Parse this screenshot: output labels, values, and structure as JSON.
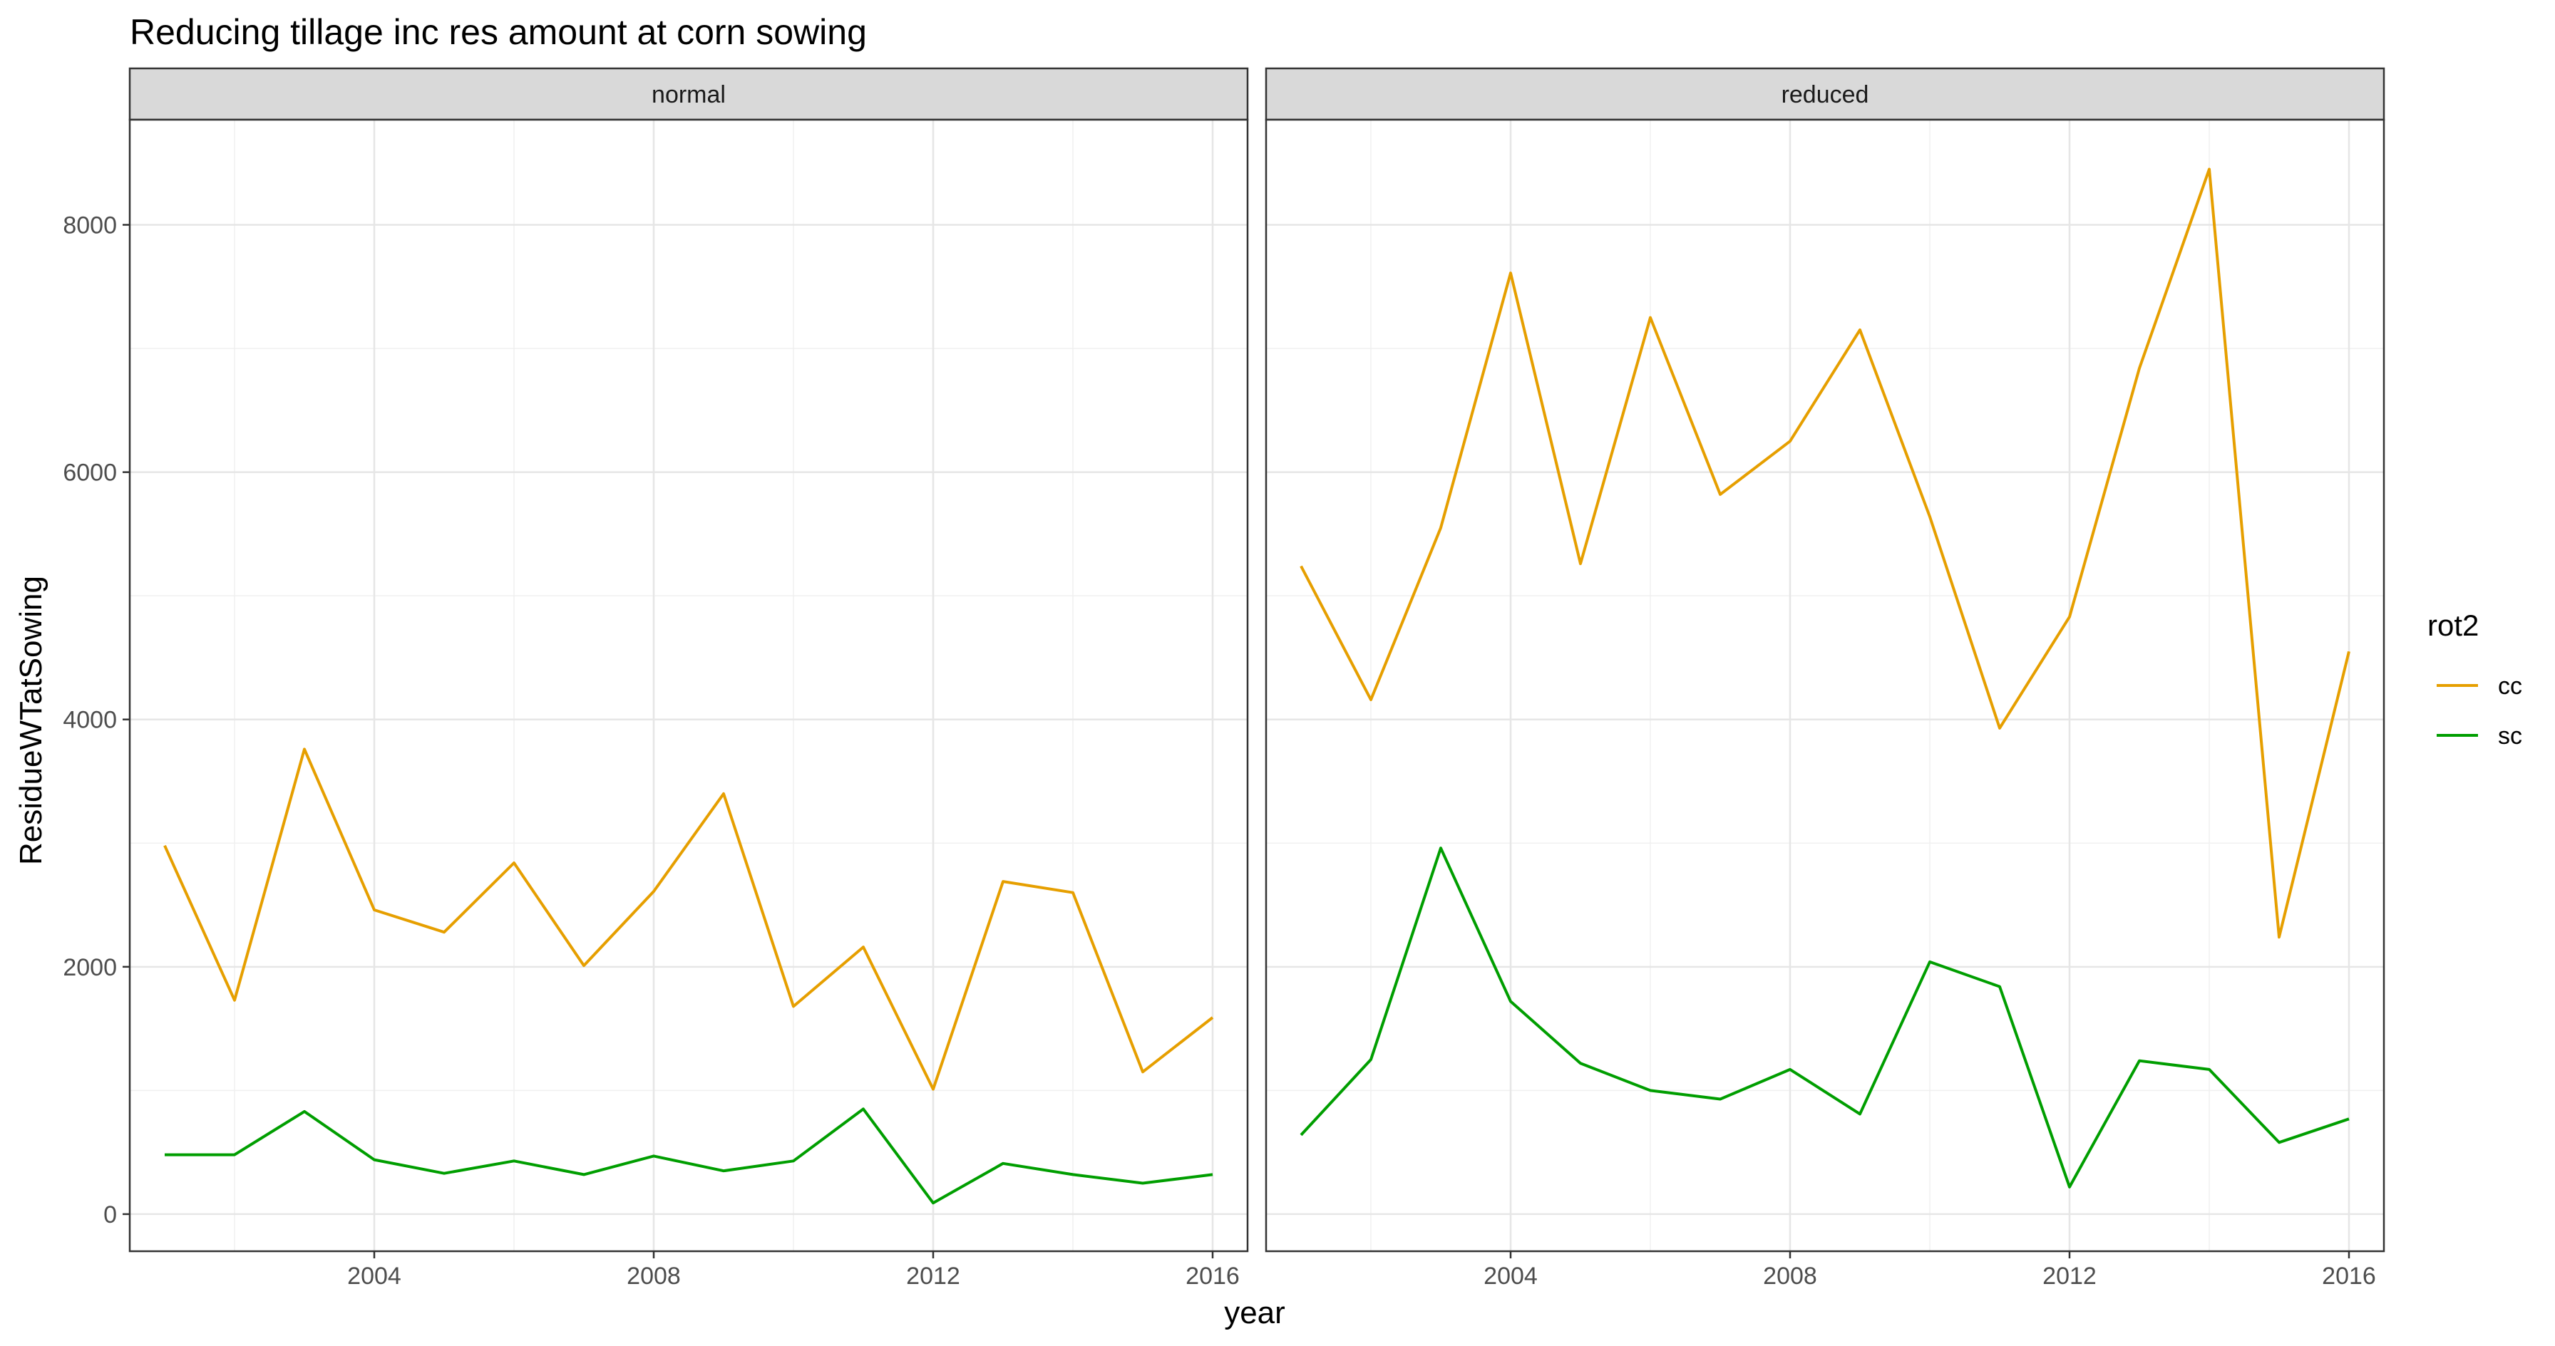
{
  "chart_data": {
    "type": "line",
    "title": "Reducing tillage inc res amount at corn sowing",
    "xlabel": "year",
    "ylabel": "ResidueWTatSowing",
    "xlim": [
      2000.5,
      2016.5
    ],
    "ylim": [
      -300,
      8850
    ],
    "x_ticks": [
      "2004",
      "2008",
      "2012",
      "2016"
    ],
    "y_ticks": [
      "0",
      "2000",
      "4000",
      "6000",
      "8000"
    ],
    "grid": true,
    "legend": {
      "title": "rot2",
      "position": "right",
      "entries": [
        "cc",
        "sc"
      ]
    },
    "series_colors": {
      "cc": "#E69F00",
      "sc": "#009E00"
    },
    "x": [
      2001,
      2002,
      2003,
      2004,
      2005,
      2006,
      2007,
      2008,
      2009,
      2010,
      2011,
      2012,
      2013,
      2014,
      2015,
      2016
    ],
    "panels": [
      {
        "name": "normal",
        "series": [
          {
            "name": "cc",
            "values": [
              2980,
              1730,
              3760,
              2460,
              2280,
              2840,
              2010,
              2610,
              3400,
              1680,
              2160,
              1010,
              2690,
              2600,
              1150,
              1590
            ]
          },
          {
            "name": "sc",
            "values": [
              480,
              480,
              830,
              440,
              330,
              430,
              320,
              470,
              350,
              430,
              850,
              90,
              410,
              320,
              250,
              320
            ]
          }
        ]
      },
      {
        "name": "reduced",
        "series": [
          {
            "name": "cc",
            "values": [
              5240,
              4160,
              5550,
              7610,
              5260,
              7250,
              5820,
              6250,
              7150,
              5640,
              3930,
              4830,
              6840,
              8450,
              2240,
              4550
            ]
          },
          {
            "name": "sc",
            "values": [
              640,
              1250,
              2960,
              1720,
              1220,
              1000,
              930,
              1170,
              810,
              2040,
              1840,
              220,
              1240,
              1170,
              580,
              770
            ]
          }
        ]
      }
    ]
  }
}
